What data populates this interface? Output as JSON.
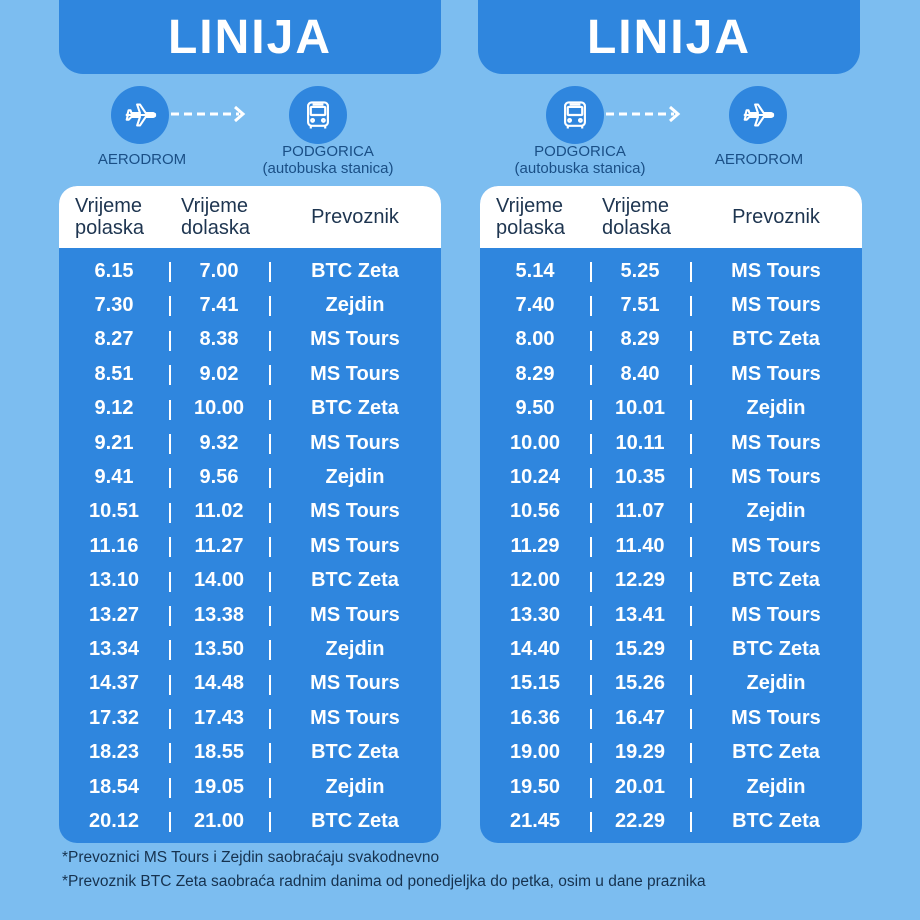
{
  "left": {
    "title": "LINIJA",
    "from_label": "AERODROM",
    "to_label_line1": "PODGORICA",
    "to_label_line2": "(autobuska stanica)",
    "headers": {
      "departure_line1": "Vrijeme",
      "departure_line2": "polaska",
      "arrival_line1": "Vrijeme",
      "arrival_line2": "dolaska",
      "carrier": "Prevoznik"
    },
    "rows": [
      [
        "6.15",
        "7.00",
        "BTC Zeta"
      ],
      [
        "7.30",
        "7.41",
        "Zejdin"
      ],
      [
        "8.27",
        "8.38",
        "MS Tours"
      ],
      [
        "8.51",
        "9.02",
        "MS Tours"
      ],
      [
        "9.12",
        "10.00",
        "BTC Zeta"
      ],
      [
        "9.21",
        "9.32",
        "MS Tours"
      ],
      [
        "9.41",
        "9.56",
        "Zejdin"
      ],
      [
        "10.51",
        "11.02",
        "MS Tours"
      ],
      [
        "11.16",
        "11.27",
        "MS Tours"
      ],
      [
        "13.10",
        "14.00",
        "BTC Zeta"
      ],
      [
        "13.27",
        "13.38",
        "MS Tours"
      ],
      [
        "13.34",
        "13.50",
        "Zejdin"
      ],
      [
        "14.37",
        "14.48",
        "MS Tours"
      ],
      [
        "17.32",
        "17.43",
        "MS Tours"
      ],
      [
        "18.23",
        "18.55",
        "BTC Zeta"
      ],
      [
        "18.54",
        "19.05",
        "Zejdin"
      ],
      [
        "20.12",
        "21.00",
        "BTC Zeta"
      ]
    ]
  },
  "right": {
    "title": "LINIJA",
    "from_label_line1": "PODGORICA",
    "from_label_line2": "(autobuska stanica)",
    "to_label": "AERODROM",
    "headers": {
      "departure_line1": "Vrijeme",
      "departure_line2": "polaska",
      "arrival_line1": "Vrijeme",
      "arrival_line2": "dolaska",
      "carrier": "Prevoznik"
    },
    "rows": [
      [
        "5.14",
        "5.25",
        "MS Tours"
      ],
      [
        "7.40",
        "7.51",
        "MS Tours"
      ],
      [
        "8.00",
        "8.29",
        "BTC Zeta"
      ],
      [
        "8.29",
        "8.40",
        "MS Tours"
      ],
      [
        "9.50",
        "10.01",
        "Zejdin"
      ],
      [
        "10.00",
        "10.11",
        "MS Tours"
      ],
      [
        "10.24",
        "10.35",
        "MS Tours"
      ],
      [
        "10.56",
        "11.07",
        "Zejdin"
      ],
      [
        "11.29",
        "11.40",
        "MS Tours"
      ],
      [
        "12.00",
        "12.29",
        "BTC Zeta"
      ],
      [
        "13.30",
        "13.41",
        "MS Tours"
      ],
      [
        "14.40",
        "15.29",
        "BTC Zeta"
      ],
      [
        "15.15",
        "15.26",
        "Zejdin"
      ],
      [
        "16.36",
        "16.47",
        "MS Tours"
      ],
      [
        "19.00",
        "19.29",
        "BTC Zeta"
      ],
      [
        "19.50",
        "20.01",
        "Zejdin"
      ],
      [
        "21.45",
        "22.29",
        "BTC Zeta"
      ]
    ]
  },
  "footer": {
    "note1": "*Prevoznici MS Tours i Zejdin saobraćaju svakodnevno",
    "note2": "*Prevoznik BTC Zeta saobraća radnim danima od ponedjeljka do petka, osim u dane praznika"
  },
  "icons": [
    "airplane-icon",
    "arrow-right-icon",
    "bus-icon"
  ],
  "colors": {
    "background": "#7cbdf0",
    "panel_blue": "#2f86de",
    "label_text": "#1a4f86"
  }
}
